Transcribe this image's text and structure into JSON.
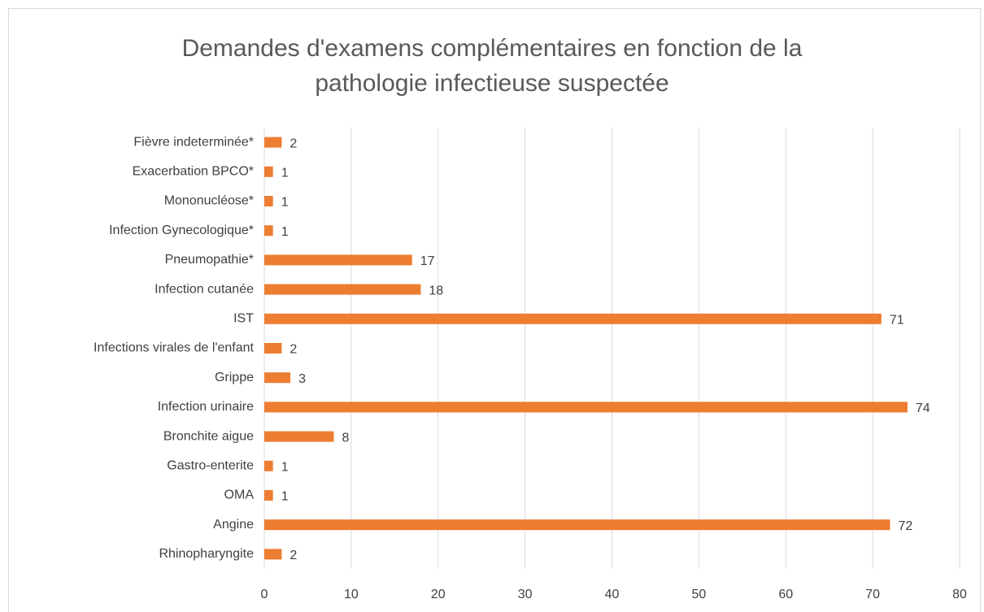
{
  "chart_data": {
    "type": "bar",
    "orientation": "horizontal",
    "title": "Demandes d'examens complémentaires en fonction de la pathologie infectieuse suspectée",
    "categories": [
      "Fièvre indeterminée*",
      "Exacerbation BPCO*",
      "Mononucléose*",
      "Infection Gynecologique*",
      "Pneumopathie*",
      "Infection cutanée",
      "IST",
      "Infections virales de l'enfant",
      "Grippe",
      "Infection urinaire",
      "Bronchite aigue",
      "Gastro-enterite",
      "OMA",
      "Angine",
      "Rhinopharyngite"
    ],
    "values": [
      2,
      1,
      1,
      1,
      17,
      18,
      71,
      2,
      3,
      74,
      8,
      1,
      1,
      72,
      2
    ],
    "color": "#ed7d31",
    "xlim": [
      0,
      80
    ],
    "xticks": [
      0,
      10,
      20,
      30,
      40,
      50,
      60,
      70,
      80
    ],
    "grid": true
  }
}
